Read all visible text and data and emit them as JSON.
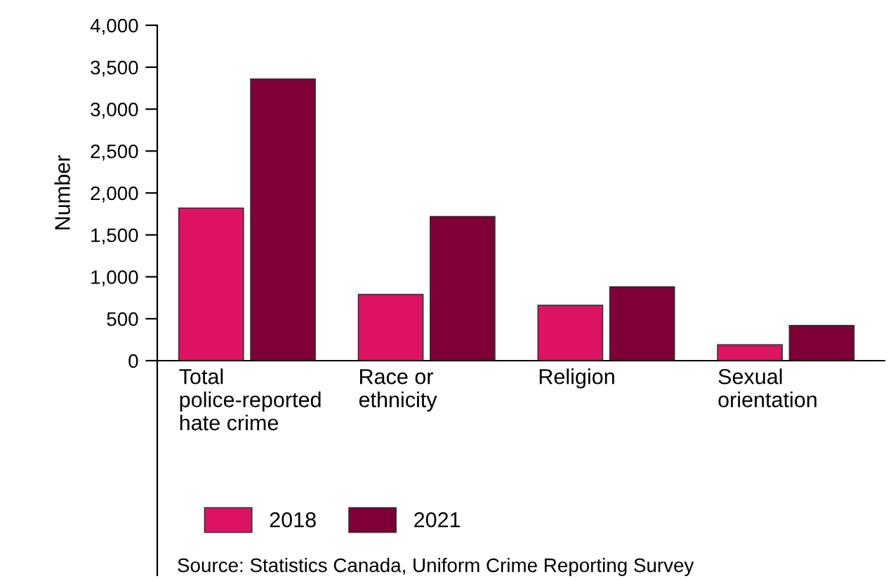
{
  "chart_data": {
    "type": "bar",
    "ylabel": "Number",
    "categories": [
      "Total\npolice-reported\nhate crime",
      "Race or\nethnicity",
      "Religion",
      "Sexual\norientation"
    ],
    "series": [
      {
        "name": "2018",
        "color": "#dc1463",
        "values": [
          1820,
          790,
          660,
          190
        ]
      },
      {
        "name": "2021",
        "color": "#7d0037",
        "values": [
          3360,
          1720,
          880,
          420
        ]
      }
    ],
    "ylim": [
      0,
      4000
    ],
    "yticks": [
      {
        "value": 0,
        "label": "0"
      },
      {
        "value": 500,
        "label": "500"
      },
      {
        "value": 1000,
        "label": "1,000"
      },
      {
        "value": 1500,
        "label": "1,500"
      },
      {
        "value": 2000,
        "label": "2,000"
      },
      {
        "value": 2500,
        "label": "2,500"
      },
      {
        "value": 3000,
        "label": "3,000"
      },
      {
        "value": 3500,
        "label": "3,500"
      },
      {
        "value": 4000,
        "label": "4,000"
      }
    ],
    "grid": false,
    "legend": "bottom",
    "annotations": [
      "Source: Statistics Canada, Uniform Crime Reporting Survey"
    ]
  }
}
